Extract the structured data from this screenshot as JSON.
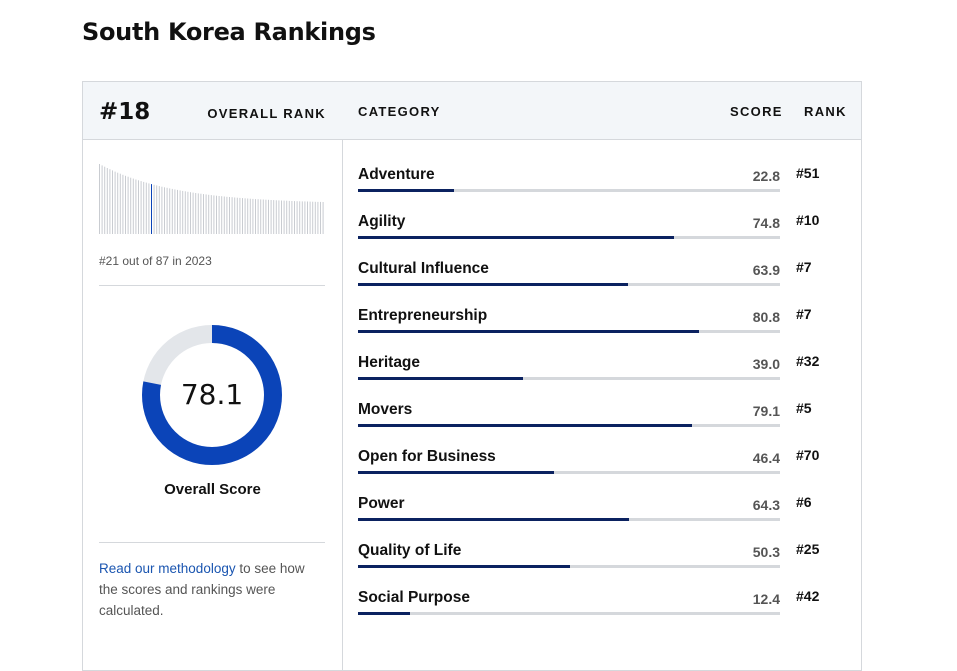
{
  "title": "South Korea Rankings",
  "overall": {
    "rank": "#18",
    "rank_label": "OVERALL RANK",
    "history_text": "#21 out of 87 in 2023",
    "history_position": 21,
    "history_total": 87,
    "score": "78.1",
    "score_value": 78.1,
    "score_label": "Overall Score",
    "methodology_link": "Read our methodology",
    "methodology_rest": " to see how the scores and rankings were calculated."
  },
  "colors": {
    "accent": "#0b44b8",
    "bar_fill": "#0b2260",
    "track": "#d5d8dc"
  },
  "table": {
    "headers": {
      "category": "CATEGORY",
      "score": "SCORE",
      "rank": "RANK"
    },
    "rows": [
      {
        "category": "Adventure",
        "score": "22.8",
        "rank": "#51"
      },
      {
        "category": "Agility",
        "score": "74.8",
        "rank": "#10"
      },
      {
        "category": "Cultural Influence",
        "score": "63.9",
        "rank": "#7"
      },
      {
        "category": "Entrepreneurship",
        "score": "80.8",
        "rank": "#7"
      },
      {
        "category": "Heritage",
        "score": "39.0",
        "rank": "#32"
      },
      {
        "category": "Movers",
        "score": "79.1",
        "rank": "#5"
      },
      {
        "category": "Open for Business",
        "score": "46.4",
        "rank": "#70"
      },
      {
        "category": "Power",
        "score": "64.3",
        "rank": "#6"
      },
      {
        "category": "Quality of Life",
        "score": "50.3",
        "rank": "#25"
      },
      {
        "category": "Social Purpose",
        "score": "12.4",
        "rank": "#42"
      }
    ]
  }
}
